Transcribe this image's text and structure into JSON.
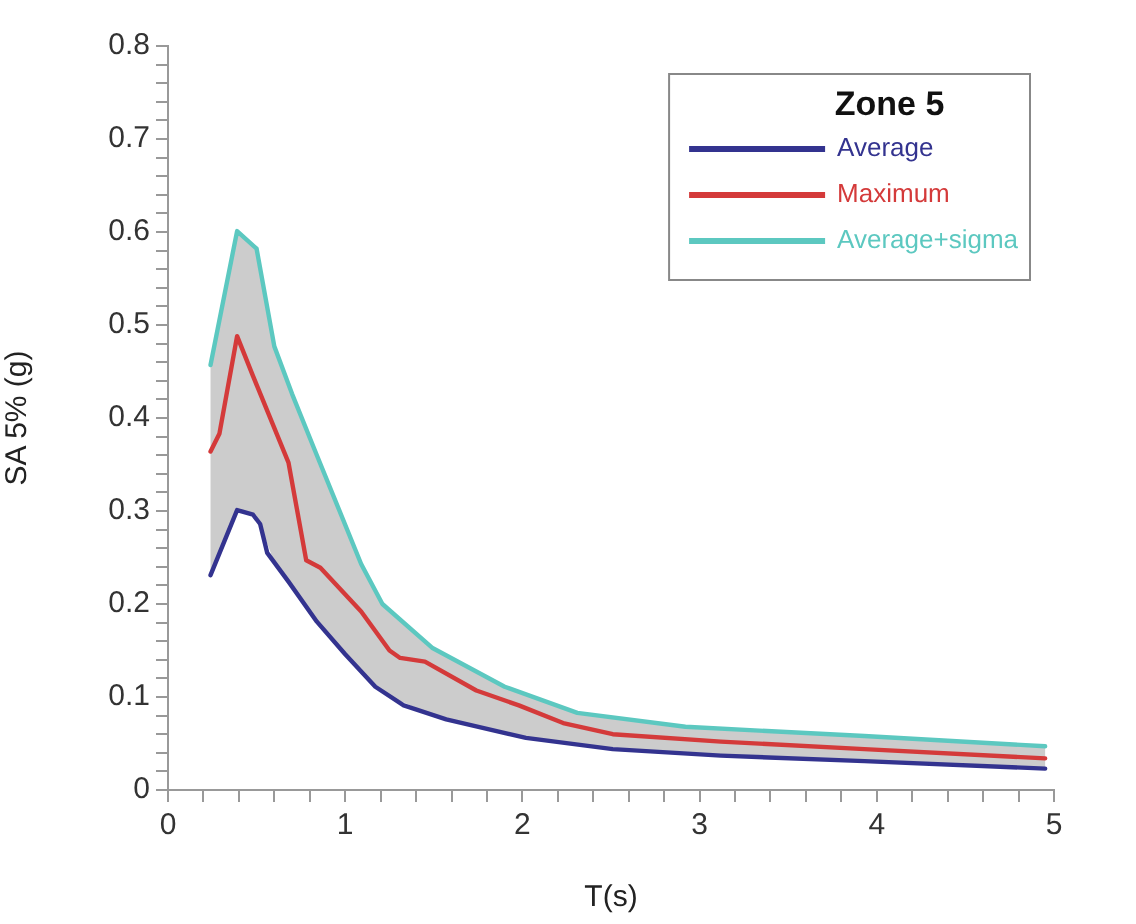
{
  "chart_data": {
    "type": "line",
    "xlabel": "T(s)",
    "ylabel": "SA 5% (g)",
    "legend_title": "Zone 5",
    "legend": "top right",
    "grid": false,
    "marker": "none",
    "line_style": "solid",
    "xlim": [
      0,
      5
    ],
    "ylim": [
      0,
      0.8
    ],
    "xticks": [
      0,
      {
        "value": 0.2,
        "label": null
      },
      {
        "value": 0.4,
        "label": null
      },
      {
        "value": 0.6,
        "label": null
      },
      {
        "value": 0.8,
        "label": null
      },
      1,
      {
        "value": 1.2,
        "label": null
      },
      {
        "value": 1.4,
        "label": null
      },
      {
        "value": 1.6,
        "label": null
      },
      {
        "value": 1.8,
        "label": null
      },
      2,
      {
        "value": 2.2,
        "label": null
      },
      {
        "value": 2.4,
        "label": null
      },
      {
        "value": 2.6,
        "label": null
      },
      {
        "value": 2.8,
        "label": null
      },
      3,
      {
        "value": 3.2,
        "label": null
      },
      {
        "value": 3.4,
        "label": null
      },
      {
        "value": 3.6,
        "label": null
      },
      {
        "value": 3.8,
        "label": null
      },
      4,
      {
        "value": 4.2,
        "label": null
      },
      {
        "value": 4.4,
        "label": null
      },
      {
        "value": 4.6,
        "label": null
      },
      {
        "value": 4.8,
        "label": null
      },
      5
    ],
    "yticks": [
      0,
      {
        "value": 0.02,
        "label": null
      },
      {
        "value": 0.04,
        "label": null
      },
      {
        "value": 0.06,
        "label": null
      },
      {
        "value": 0.08,
        "label": null
      },
      0.1,
      {
        "value": 0.12,
        "label": null
      },
      {
        "value": 0.14,
        "label": null
      },
      {
        "value": 0.16,
        "label": null
      },
      {
        "value": 0.18,
        "label": null
      },
      0.2,
      {
        "value": 0.22,
        "label": null
      },
      {
        "value": 0.24,
        "label": null
      },
      {
        "value": 0.26,
        "label": null
      },
      {
        "value": 0.28,
        "label": null
      },
      0.3,
      {
        "value": 0.32,
        "label": null
      },
      {
        "value": 0.34,
        "label": null
      },
      {
        "value": 0.36,
        "label": null
      },
      {
        "value": 0.38,
        "label": null
      },
      0.4,
      {
        "value": 0.42,
        "label": null
      },
      {
        "value": 0.44,
        "label": null
      },
      {
        "value": 0.46,
        "label": null
      },
      {
        "value": 0.48,
        "label": null
      },
      0.5,
      {
        "value": 0.52,
        "label": null
      },
      {
        "value": 0.54,
        "label": null
      },
      {
        "value": 0.56,
        "label": null
      },
      {
        "value": 0.58,
        "label": null
      },
      0.6,
      {
        "value": 0.62,
        "label": null
      },
      {
        "value": 0.64,
        "label": null
      },
      {
        "value": 0.66,
        "label": null
      },
      {
        "value": 0.68,
        "label": null
      },
      0.7,
      {
        "value": 0.72,
        "label": null
      },
      {
        "value": 0.74,
        "label": null
      },
      {
        "value": 0.76,
        "label": null
      },
      {
        "value": 0.78,
        "label": null
      },
      0.8
    ],
    "series": [
      {
        "name": "Average",
        "color": "#33338f",
        "x": [
          0.24,
          0.39,
          0.48,
          0.52,
          0.56,
          0.68,
          0.84,
          1.0,
          1.17,
          1.33,
          1.57,
          2.02,
          2.51,
          3.12,
          3.93,
          4.95
        ],
        "values": [
          0.231,
          0.301,
          0.296,
          0.286,
          0.255,
          0.224,
          0.181,
          0.146,
          0.111,
          0.091,
          0.076,
          0.056,
          0.044,
          0.037,
          0.031,
          0.023
        ]
      },
      {
        "name": "Maximum",
        "color": "#d43a3a",
        "x": [
          0.24,
          0.29,
          0.39,
          0.48,
          0.68,
          0.78,
          0.86,
          1.09,
          1.25,
          1.31,
          1.45,
          1.74,
          1.98,
          2.23,
          2.51,
          3.12,
          3.93,
          4.95
        ],
        "values": [
          0.364,
          0.383,
          0.488,
          0.445,
          0.352,
          0.247,
          0.239,
          0.192,
          0.15,
          0.142,
          0.138,
          0.107,
          0.091,
          0.072,
          0.06,
          0.052,
          0.044,
          0.034
        ]
      },
      {
        "name": "Average+sigma",
        "color": "#5cc8c0",
        "x": [
          0.24,
          0.39,
          0.5,
          0.6,
          0.7,
          0.84,
          1.09,
          1.21,
          1.49,
          1.9,
          2.31,
          2.92,
          3.93,
          4.95
        ],
        "values": [
          0.457,
          0.601,
          0.582,
          0.477,
          0.426,
          0.36,
          0.243,
          0.2,
          0.153,
          0.111,
          0.083,
          0.068,
          0.058,
          0.047
        ],
        "lower": [
          0.231,
          0.301,
          0.295,
          0.245,
          0.22,
          0.181,
          0.127,
          0.104,
          0.081,
          0.06,
          0.049,
          0.039,
          0.031,
          0.023
        ],
        "upper": [
          0.457,
          0.601,
          0.582,
          0.477,
          0.426,
          0.36,
          0.243,
          0.2,
          0.153,
          0.111,
          0.083,
          0.068,
          0.058,
          0.047
        ]
      }
    ]
  }
}
